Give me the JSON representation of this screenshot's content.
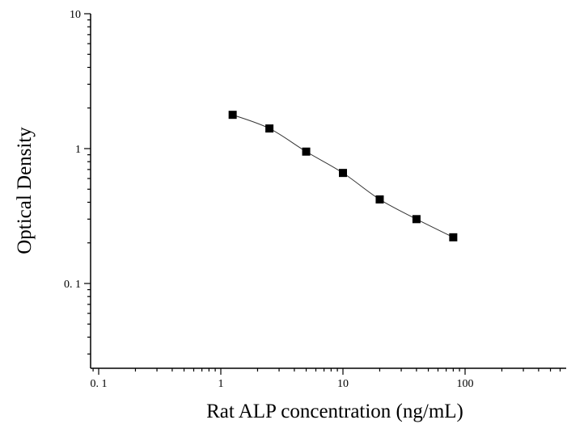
{
  "chart_data": {
    "type": "scatter",
    "xlabel": "Rat ALP concentration (ng/mL)",
    "ylabel": "Optical Density",
    "xscale": "log",
    "yscale": "log",
    "xlim": [
      0.08,
      800
    ],
    "ylim": [
      0.025,
      10
    ],
    "x_ticks": [
      {
        "value": 0.1,
        "label": "0. 1"
      },
      {
        "value": 1,
        "label": "1"
      },
      {
        "value": 10,
        "label": "10"
      },
      {
        "value": 100,
        "label": "100"
      }
    ],
    "y_ticks": [
      {
        "value": 0.1,
        "label": "0. 1"
      },
      {
        "value": 1,
        "label": "1"
      },
      {
        "value": 10,
        "label": "10"
      }
    ],
    "grid": false,
    "points": [
      {
        "x": 1.25,
        "y": 1.78
      },
      {
        "x": 2.5,
        "y": 1.41
      },
      {
        "x": 5,
        "y": 0.95
      },
      {
        "x": 10,
        "y": 0.66
      },
      {
        "x": 20,
        "y": 0.42
      },
      {
        "x": 40,
        "y": 0.3
      },
      {
        "x": 80,
        "y": 0.22
      }
    ],
    "fit_curve": true,
    "colors": {
      "points": "#000000",
      "curve": "#333333",
      "axes": "#000000"
    }
  }
}
